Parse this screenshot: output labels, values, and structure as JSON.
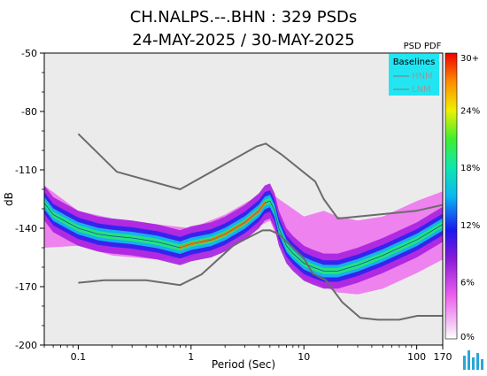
{
  "chart_data": {
    "type": "heatmap",
    "title": "CH.NALPS.--.BHN : 329 PSDs",
    "subtitle": "24-MAY-2025 / 30-MAY-2025",
    "xlabel": "Period (Sec)",
    "ylabel": "dB",
    "x_scale": "log",
    "xlim": [
      0.05,
      170
    ],
    "ylim": [
      -200,
      -50
    ],
    "x_ticks": [
      "0.1",
      "1",
      "10",
      "100",
      "170"
    ],
    "x_tick_values": [
      0.1,
      1,
      10,
      100,
      170
    ],
    "y_ticks": [
      "-50",
      "-80",
      "-110",
      "-140",
      "-170",
      "-200"
    ],
    "y_tick_values": [
      -50,
      -80,
      -110,
      -140,
      -170,
      -200
    ],
    "grid": false,
    "legend": {
      "title": "Baselines",
      "placement": "top-right",
      "entries": [
        "HNM",
        "LNM"
      ]
    },
    "colorbar": {
      "title": "PSD PDF",
      "labels": [
        "30+",
        "24%",
        "18%",
        "12%",
        "6%",
        "0%"
      ],
      "values": [
        30,
        24,
        18,
        12,
        6,
        0
      ]
    },
    "series": [
      {
        "name": "HNM",
        "x": [
          0.1,
          0.22,
          0.8,
          3.8,
          4.6,
          6.3,
          12.6,
          15,
          20,
          100,
          170
        ],
        "y": [
          -91.5,
          -111,
          -120,
          -98,
          -96.5,
          -102,
          -116,
          -125,
          -135,
          -131,
          -128
        ]
      },
      {
        "name": "LNM",
        "x": [
          0.1,
          0.17,
          0.4,
          0.8,
          1.24,
          2.4,
          4.3,
          5,
          6,
          10,
          12,
          15.6,
          21.9,
          31.6,
          45,
          70,
          101,
          154,
          170
        ],
        "y": [
          -168,
          -166.7,
          -166.7,
          -169.2,
          -163.7,
          -148.6,
          -141.1,
          -141,
          -143.1,
          -155.5,
          -163.3,
          -166.6,
          -178,
          -186,
          -187,
          -187,
          -185,
          -185,
          -185
        ]
      },
      {
        "name": "PSD mode",
        "x": [
          0.05,
          0.06,
          0.08,
          0.1,
          0.15,
          0.2,
          0.3,
          0.5,
          0.8,
          1,
          1.5,
          2,
          3,
          4,
          4.5,
          5,
          5.5,
          6,
          7,
          8,
          10,
          12,
          15,
          20,
          30,
          50,
          100,
          170
        ],
        "y": [
          -127,
          -133,
          -137,
          -140,
          -143,
          -144,
          -145,
          -147,
          -150,
          -148,
          -146,
          -143,
          -137,
          -131,
          -127,
          -126,
          -131,
          -140,
          -149,
          -153,
          -158,
          -160,
          -162,
          -162,
          -159,
          -154,
          -146,
          -138
        ]
      }
    ],
    "pdf_band": {
      "x": [
        0.05,
        0.1,
        0.2,
        0.5,
        1,
        2,
        4,
        5,
        6,
        8,
        10,
        15,
        20,
        30,
        50,
        100,
        170
      ],
      "upper": [
        -118,
        -131,
        -135,
        -138,
        -140,
        -133,
        -123,
        -121,
        -125,
        -130,
        -134,
        -131,
        -134,
        -136,
        -134,
        -126,
        -121
      ],
      "lower": [
        -150,
        -149,
        -154,
        -156,
        -155,
        -147,
        -139,
        -136,
        -147,
        -158,
        -166,
        -170,
        -173,
        -174,
        -171,
        -163,
        -156
      ]
    }
  }
}
